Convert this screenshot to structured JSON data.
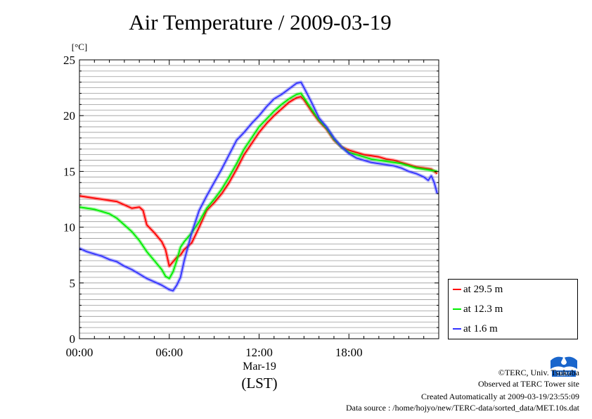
{
  "title": "Air Temperature / 2009-03-19",
  "x_date_label": "Mar-19",
  "x_zone_label": "(LST)",
  "credits": {
    "copyright": "©TERC, Univ. Tsukuba",
    "observed": "Observed at TERC Tower site",
    "created": "Created Automatically at 2009-03-19/23:55:09",
    "source": "Data source : /home/hojyo/new/TERC-data/sorted_data/MET.10s.dat"
  },
  "logo_text": "TERC",
  "chart_data": {
    "type": "line",
    "title": "Air Temperature / 2009-03-19",
    "xlabel": "Mar-19 (LST)",
    "ylabel": "[°C]",
    "ylim": [
      0,
      25
    ],
    "xlim": [
      0,
      24
    ],
    "x_ticks": [
      0,
      6,
      12,
      18
    ],
    "x_tick_labels": [
      "00:00",
      "06:00",
      "12:00",
      "18:00"
    ],
    "y_ticks": [
      0,
      5,
      10,
      15,
      20,
      25
    ],
    "y_tick_labels": [
      "0",
      "5",
      "10",
      "15",
      "20",
      "25"
    ],
    "grid": "horizontal every 0.5 °C",
    "legend_position": "bottom-right outside",
    "series": [
      {
        "name": "at 29.5 m",
        "color": "#ff0000",
        "x": [
          0,
          0.5,
          1,
          1.5,
          2,
          2.5,
          3,
          3.5,
          4,
          4.25,
          4.5,
          5,
          5.5,
          5.75,
          6,
          6.25,
          6.5,
          6.75,
          7,
          7.5,
          8,
          8.5,
          9,
          9.5,
          10,
          10.5,
          11,
          11.5,
          12,
          12.5,
          13,
          13.5,
          14,
          14.5,
          14.8,
          15,
          15.5,
          16,
          16.5,
          17,
          17.5,
          18,
          18.5,
          19,
          19.5,
          20,
          20.5,
          21,
          21.5,
          22,
          22.5,
          23,
          23.5,
          23.9
        ],
        "y": [
          12.8,
          12.7,
          12.6,
          12.5,
          12.4,
          12.3,
          12.0,
          11.7,
          11.8,
          11.5,
          10.2,
          9.5,
          8.7,
          8.0,
          6.5,
          6.9,
          7.3,
          7.5,
          8.0,
          8.6,
          10.0,
          11.5,
          12.2,
          13.0,
          14.0,
          15.2,
          16.5,
          17.5,
          18.5,
          19.3,
          20.0,
          20.6,
          21.2,
          21.6,
          21.7,
          21.4,
          20.4,
          19.5,
          18.8,
          17.8,
          17.2,
          16.9,
          16.7,
          16.5,
          16.4,
          16.3,
          16.1,
          16.0,
          15.8,
          15.6,
          15.4,
          15.3,
          15.2,
          14.8
        ]
      },
      {
        "name": "at 12.3 m",
        "color": "#00ee00",
        "x": [
          0,
          0.5,
          1,
          1.5,
          2,
          2.5,
          3,
          3.5,
          4,
          4.5,
          5,
          5.5,
          5.75,
          6,
          6.25,
          6.5,
          6.75,
          7,
          7.5,
          8,
          8.5,
          9,
          9.5,
          10,
          10.5,
          11,
          11.5,
          12,
          12.5,
          13,
          13.5,
          14,
          14.5,
          14.8,
          15,
          15.5,
          16,
          16.5,
          17,
          17.5,
          18,
          18.5,
          19,
          19.5,
          20,
          20.5,
          21,
          21.5,
          22,
          22.5,
          23,
          23.5,
          23.9
        ],
        "y": [
          11.8,
          11.7,
          11.6,
          11.4,
          11.2,
          10.8,
          10.2,
          9.6,
          8.8,
          7.8,
          7.0,
          6.2,
          5.6,
          5.4,
          6.0,
          7.0,
          8.2,
          8.7,
          9.5,
          10.5,
          11.7,
          12.5,
          13.4,
          14.5,
          15.7,
          17.0,
          18.0,
          19.0,
          19.7,
          20.4,
          21.0,
          21.5,
          21.9,
          22.0,
          21.6,
          20.6,
          19.6,
          18.9,
          17.9,
          17.2,
          16.7,
          16.5,
          16.3,
          16.1,
          16.0,
          15.9,
          15.8,
          15.7,
          15.5,
          15.3,
          15.2,
          15.1,
          15.0
        ]
      },
      {
        "name": "at 1.6 m",
        "color": "#3333ff",
        "x": [
          0,
          0.5,
          1,
          1.5,
          2,
          2.5,
          3,
          3.5,
          4,
          4.5,
          5,
          5.5,
          5.75,
          6,
          6.25,
          6.5,
          6.75,
          7,
          7.5,
          8,
          8.5,
          9,
          9.5,
          10,
          10.5,
          11,
          11.5,
          12,
          12.5,
          13,
          13.5,
          14,
          14.5,
          14.8,
          15,
          15.5,
          16,
          16.5,
          17,
          17.5,
          18,
          18.5,
          19,
          19.5,
          20,
          20.5,
          21,
          21.5,
          22,
          22.5,
          23,
          23.3,
          23.5,
          23.7,
          23.9
        ],
        "y": [
          8.1,
          7.8,
          7.6,
          7.4,
          7.1,
          6.9,
          6.5,
          6.2,
          5.8,
          5.4,
          5.1,
          4.8,
          4.6,
          4.4,
          4.3,
          4.8,
          5.5,
          7.0,
          9.5,
          11.5,
          12.8,
          14.0,
          15.2,
          16.5,
          17.8,
          18.5,
          19.3,
          20.0,
          20.8,
          21.5,
          21.9,
          22.4,
          22.9,
          23.0,
          22.5,
          21.2,
          19.8,
          19.0,
          18.0,
          17.2,
          16.6,
          16.2,
          16.0,
          15.8,
          15.7,
          15.6,
          15.5,
          15.3,
          15.0,
          14.8,
          14.5,
          14.2,
          14.6,
          14.0,
          13.0
        ]
      }
    ]
  }
}
